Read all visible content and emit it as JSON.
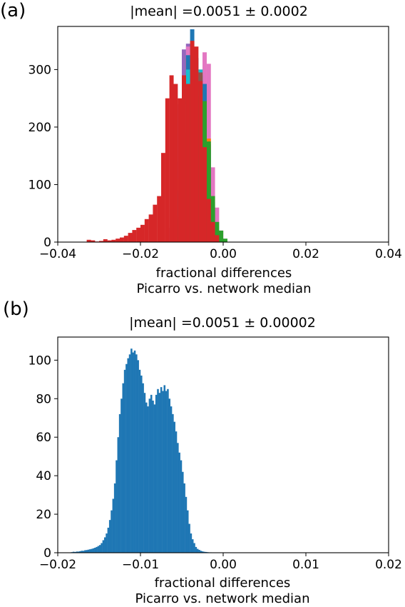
{
  "panels": {
    "a": {
      "tag": "(a)",
      "title": "|mean| =0.0051 ± 0.0002",
      "xlabel_line1": "fractional differences",
      "xlabel_line2": "Picarro vs. network median"
    },
    "b": {
      "tag": "(b)",
      "title": "|mean| =0.0051 ± 0.00002",
      "xlabel_line1": "fractional differences",
      "xlabel_line2": "Picarro vs. network median"
    }
  },
  "chart_data": [
    {
      "type": "histogram",
      "panel": "a",
      "title": "|mean| =0.0051 ± 0.0002",
      "xlabel": "fractional differences / Picarro vs. network median",
      "ylabel": "",
      "xlim": [
        -0.04,
        0.04
      ],
      "ylim": [
        0,
        375
      ],
      "xticks": [
        "−0.04",
        "−0.02",
        "0.00",
        "0.02",
        "0.04"
      ],
      "xtick_values": [
        -0.04,
        -0.02,
        0.0,
        0.02,
        0.04
      ],
      "yticks": [
        0,
        100,
        200,
        300
      ],
      "grid": false,
      "series": [
        {
          "color": "#9467bd",
          "bin_start": -0.013,
          "bin_width": 0.001,
          "values": [
            25,
            140,
            240,
            335,
            345,
            315,
            270,
            200,
            140,
            60,
            20,
            5
          ]
        },
        {
          "color": "#e377c2",
          "bin_start": -0.013,
          "bin_width": 0.001,
          "values": [
            0,
            20,
            90,
            250,
            340,
            300,
            280,
            300,
            330,
            310,
            130,
            60,
            20
          ]
        },
        {
          "color": "#ff7f0e",
          "bin_start": -0.012,
          "bin_width": 0.001,
          "values": [
            15,
            110,
            275,
            320,
            300,
            285,
            300,
            260,
            180,
            80,
            20,
            5
          ]
        },
        {
          "color": "#1f77b4",
          "bin_start": -0.012,
          "bin_width": 0.001,
          "values": [
            10,
            90,
            240,
            325,
            370,
            320,
            290,
            275,
            160,
            70,
            15,
            5
          ]
        },
        {
          "color": "#17becf",
          "bin_start": -0.011,
          "bin_width": 0.001,
          "values": [
            85,
            245,
            300,
            335,
            290,
            300,
            240,
            160,
            55,
            20,
            5
          ]
        },
        {
          "color": "#8c564b",
          "bin_start": -0.011,
          "bin_width": 0.001,
          "values": [
            45,
            190,
            240,
            270,
            280,
            295,
            245,
            170,
            60,
            15
          ]
        },
        {
          "color": "#2ca02c",
          "bin_start": -0.012,
          "bin_width": 0.001,
          "values": [
            8,
            40,
            190,
            255,
            275,
            255,
            270,
            245,
            175,
            80,
            35,
            20,
            6
          ]
        },
        {
          "color": "#d62728",
          "bin_start": -0.033,
          "bin_width": 0.001,
          "values": [
            4,
            3,
            1,
            2,
            5,
            3,
            4,
            6,
            8,
            11,
            16,
            21,
            25,
            30,
            40,
            48,
            65,
            80,
            155,
            250,
            290,
            275,
            250,
            290,
            275,
            350,
            340,
            280,
            165,
            75,
            35,
            12
          ]
        }
      ]
    },
    {
      "type": "histogram",
      "panel": "b",
      "title": "|mean| =0.0051 ± 0.00002",
      "xlabel": "fractional differences / Picarro vs. network median",
      "ylabel": "",
      "xlim": [
        -0.02,
        0.02
      ],
      "ylim": [
        0,
        112
      ],
      "xticks": [
        "−0.02",
        "−0.01",
        "0.00",
        "0.01",
        "0.02"
      ],
      "xtick_values": [
        -0.02,
        -0.01,
        0.0,
        0.01,
        0.02
      ],
      "yticks": [
        0,
        20,
        40,
        60,
        80,
        100
      ],
      "grid": false,
      "series": [
        {
          "color": "#1f77b4",
          "bin_start": -0.0184,
          "bin_width": 0.0002,
          "values": [
            0.3,
            0.5,
            0.4,
            0.6,
            0.6,
            0.8,
            1.0,
            1.0,
            1.3,
            1.4,
            1.6,
            1.8,
            2.0,
            2.3,
            2.6,
            3.0,
            3.5,
            4.0,
            5.0,
            6.5,
            8,
            10,
            13,
            17,
            22,
            28,
            36,
            48,
            60,
            72,
            80,
            88,
            95,
            98,
            101,
            103,
            106,
            104,
            105,
            103,
            100,
            95,
            92,
            88,
            83,
            78,
            76,
            80,
            82,
            79,
            77,
            82,
            85,
            83,
            86,
            84,
            87,
            84,
            85,
            80,
            76,
            72,
            68,
            63,
            57,
            52,
            48,
            42,
            36,
            29,
            22,
            15,
            10,
            7,
            5,
            3,
            2,
            1.5,
            1,
            0.7,
            0.5,
            0.4,
            0.3,
            0.2,
            0.2,
            0.1
          ]
        }
      ]
    }
  ]
}
